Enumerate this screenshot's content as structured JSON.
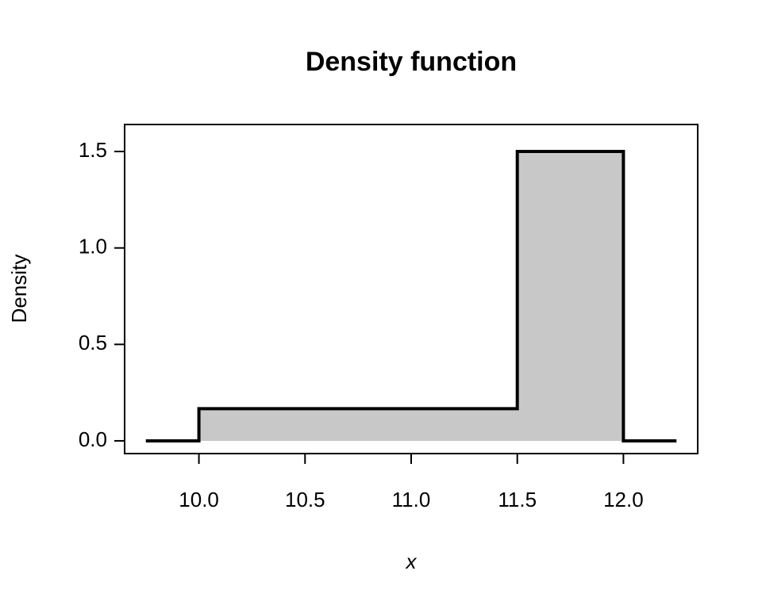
{
  "chart_data": {
    "type": "line",
    "title": "Density function",
    "xlabel": "x",
    "ylabel": "Density",
    "x": [
      9.75,
      10,
      10,
      11.5,
      11.5,
      12,
      12,
      12.25
    ],
    "series": [
      {
        "color": "#000000",
        "values": [
          0,
          0,
          0.167,
          0.167,
          1.5,
          1.5,
          0,
          0
        ]
      }
    ],
    "fill_color": "#c8c8c8",
    "xlim": [
      9.65,
      12.35
    ],
    "ylim": [
      -0.066,
      1.64
    ],
    "xticks": [
      {
        "value": 10,
        "label": "10.0"
      },
      10.5,
      {
        "value": 11,
        "label": "11.0"
      },
      11.5,
      {
        "value": 12,
        "label": "12.0"
      }
    ],
    "yticks": [
      {
        "value": 0,
        "label": "0.0"
      },
      0.5,
      {
        "value": 1,
        "label": "1.0"
      },
      1.5
    ],
    "grid": false
  }
}
